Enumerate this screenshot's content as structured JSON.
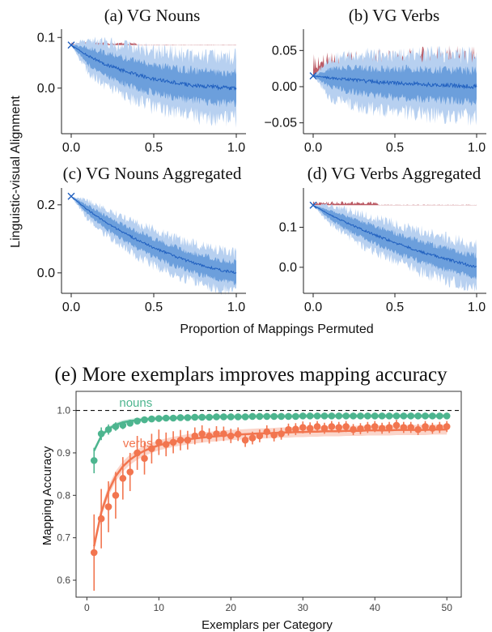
{
  "top_panels": {
    "shared_ylabel": "Linguistic-visual Alignment",
    "shared_xlabel": "Proportion of Mappings Permuted"
  },
  "chart_data": [
    {
      "type": "line",
      "title": "(a) VG Nouns",
      "xlabel": "",
      "ylabel": "",
      "xlim": [
        0,
        1
      ],
      "ylim": [
        -0.09,
        0.11
      ],
      "xticks": [
        0.0,
        0.5,
        1.0
      ],
      "xtick_labels": [
        "0.0",
        "0.5",
        "1.0"
      ],
      "yticks": [
        0.0,
        0.1
      ],
      "ytick_labels": [
        "0.0",
        "0.1"
      ],
      "start_value": 0.085,
      "series": [
        {
          "x": [
            0,
            0.1,
            0.2,
            0.3,
            0.4,
            0.5,
            0.6,
            0.7,
            0.8,
            0.9,
            1.0
          ],
          "values": [
            0.085,
            0.064,
            0.048,
            0.036,
            0.026,
            0.018,
            0.012,
            0.007,
            0.004,
            0.001,
            0.0
          ],
          "band_inner": [
            0.0,
            0.018,
            0.024,
            0.027,
            0.029,
            0.03,
            0.031,
            0.032,
            0.032,
            0.033,
            0.033
          ],
          "band_outer": [
            0.0,
            0.035,
            0.045,
            0.052,
            0.057,
            0.06,
            0.062,
            0.064,
            0.065,
            0.066,
            0.066
          ]
        }
      ],
      "above_baseline_max": 0.006,
      "colors": {
        "line": "#1f5fbf",
        "band_inner": "#6c9fdc",
        "band_outer": "#b7d0f0",
        "above": "#b54a55"
      }
    },
    {
      "type": "line",
      "title": "(b) VG Verbs",
      "xlabel": "",
      "ylabel": "",
      "xlim": [
        0,
        1
      ],
      "ylim": [
        -0.065,
        0.075
      ],
      "xticks": [
        0.0,
        0.5,
        1.0
      ],
      "xtick_labels": [
        "0.0",
        "0.5",
        "1.0"
      ],
      "yticks": [
        -0.05,
        0.0,
        0.05
      ],
      "ytick_labels": [
        "−0.05",
        "0.00",
        "0.05"
      ],
      "start_value": 0.015,
      "series": [
        {
          "x": [
            0,
            0.1,
            0.2,
            0.3,
            0.4,
            0.5,
            0.6,
            0.7,
            0.8,
            0.9,
            1.0
          ],
          "values": [
            0.015,
            0.012,
            0.01,
            0.008,
            0.006,
            0.005,
            0.004,
            0.003,
            0.002,
            0.001,
            0.0
          ],
          "band_inner": [
            0.0,
            0.013,
            0.017,
            0.019,
            0.02,
            0.021,
            0.022,
            0.022,
            0.023,
            0.023,
            0.023
          ],
          "band_outer": [
            0.0,
            0.028,
            0.035,
            0.039,
            0.041,
            0.043,
            0.044,
            0.045,
            0.046,
            0.046,
            0.047
          ]
        }
      ],
      "above_baseline_max": 0.045,
      "colors": {
        "line": "#1f5fbf",
        "band_inner": "#6c9fdc",
        "band_outer": "#b7d0f0",
        "above": "#b54a55"
      }
    },
    {
      "type": "line",
      "title": "(c) VG Nouns Aggregated",
      "xlabel": "",
      "ylabel": "",
      "xlim": [
        0,
        1
      ],
      "ylim": [
        -0.06,
        0.24
      ],
      "xticks": [
        0.0,
        0.5,
        1.0
      ],
      "xtick_labels": [
        "0.0",
        "0.5",
        "1.0"
      ],
      "yticks": [
        0.0,
        0.2
      ],
      "ytick_labels": [
        "0.0",
        "0.2"
      ],
      "start_value": 0.225,
      "series": [
        {
          "x": [
            0,
            0.1,
            0.2,
            0.3,
            0.4,
            0.5,
            0.6,
            0.7,
            0.8,
            0.9,
            1.0
          ],
          "values": [
            0.225,
            0.185,
            0.152,
            0.123,
            0.097,
            0.074,
            0.054,
            0.036,
            0.021,
            0.009,
            0.0
          ],
          "band_inner": [
            0.0,
            0.015,
            0.02,
            0.024,
            0.027,
            0.029,
            0.03,
            0.031,
            0.032,
            0.033,
            0.033
          ],
          "band_outer": [
            0.0,
            0.03,
            0.04,
            0.047,
            0.052,
            0.056,
            0.058,
            0.06,
            0.061,
            0.062,
            0.062
          ]
        }
      ],
      "above_baseline_max": 0.0,
      "colors": {
        "line": "#1f5fbf",
        "band_inner": "#6c9fdc",
        "band_outer": "#b7d0f0",
        "above": "#b54a55"
      }
    },
    {
      "type": "line",
      "title": "(d) VG Verbs Aggregated",
      "xlabel": "",
      "ylabel": "",
      "xlim": [
        0,
        1
      ],
      "ylim": [
        -0.065,
        0.19
      ],
      "xticks": [
        0.0,
        0.5,
        1.0
      ],
      "xtick_labels": [
        "0.0",
        "0.5",
        "1.0"
      ],
      "yticks": [
        0.0,
        0.1
      ],
      "ytick_labels": [
        "0.0",
        "0.1"
      ],
      "start_value": 0.155,
      "series": [
        {
          "x": [
            0,
            0.1,
            0.2,
            0.3,
            0.4,
            0.5,
            0.6,
            0.7,
            0.8,
            0.9,
            1.0
          ],
          "values": [
            0.155,
            0.132,
            0.112,
            0.094,
            0.077,
            0.062,
            0.047,
            0.034,
            0.022,
            0.011,
            0.0
          ],
          "band_inner": [
            0.0,
            0.012,
            0.017,
            0.021,
            0.024,
            0.026,
            0.027,
            0.028,
            0.029,
            0.029,
            0.03
          ],
          "band_outer": [
            0.0,
            0.025,
            0.035,
            0.042,
            0.047,
            0.051,
            0.054,
            0.056,
            0.057,
            0.058,
            0.058
          ]
        }
      ],
      "above_baseline_max": 0.01,
      "colors": {
        "line": "#1f5fbf",
        "band_inner": "#6c9fdc",
        "band_outer": "#b7d0f0",
        "above": "#b54a55"
      }
    },
    {
      "type": "scatter",
      "title": "(e) More exemplars improves mapping accuracy",
      "xlabel": "Exemplars per Category",
      "ylabel": "Mapping Accuracy",
      "xlim": [
        -1.5,
        52
      ],
      "ylim": [
        0.56,
        1.045
      ],
      "xticks": [
        0,
        10,
        20,
        30,
        40,
        50
      ],
      "xtick_labels": [
        "0",
        "10",
        "20",
        "30",
        "40",
        "50"
      ],
      "yticks": [
        0.6,
        0.7,
        0.8,
        0.9,
        1.0
      ],
      "ytick_labels": [
        "0.6",
        "0.7",
        "0.8",
        "0.9",
        "1.0"
      ],
      "reference_line": 1.0,
      "x": [
        1,
        2,
        3,
        4,
        5,
        6,
        7,
        8,
        9,
        10,
        11,
        12,
        13,
        14,
        15,
        16,
        17,
        18,
        19,
        20,
        21,
        22,
        23,
        24,
        25,
        26,
        27,
        28,
        29,
        30,
        31,
        32,
        33,
        34,
        35,
        36,
        37,
        38,
        39,
        40,
        41,
        42,
        43,
        44,
        45,
        46,
        47,
        48,
        49,
        50
      ],
      "series": [
        {
          "name": "nouns",
          "color": "#4db58f",
          "values": [
            0.882,
            0.945,
            0.955,
            0.962,
            0.965,
            0.97,
            0.975,
            0.978,
            0.98,
            0.981,
            0.982,
            0.982,
            0.983,
            0.983,
            0.984,
            0.984,
            0.984,
            0.985,
            0.985,
            0.985,
            0.985,
            0.985,
            0.986,
            0.986,
            0.986,
            0.986,
            0.986,
            0.986,
            0.986,
            0.987,
            0.987,
            0.987,
            0.987,
            0.987,
            0.987,
            0.987,
            0.987,
            0.987,
            0.987,
            0.987,
            0.987,
            0.987,
            0.987,
            0.987,
            0.987,
            0.987,
            0.987,
            0.987,
            0.987,
            0.987
          ],
          "errors": [
            0.03,
            0.015,
            0.012,
            0.01,
            0.009,
            0.008,
            0.007,
            0.006,
            0.005,
            0.005,
            0.005,
            0.004,
            0.004,
            0.004,
            0.004,
            0.004,
            0.004,
            0.004,
            0.004,
            0.004,
            0.004,
            0.004,
            0.004,
            0.004,
            0.004,
            0.004,
            0.004,
            0.004,
            0.004,
            0.004,
            0.004,
            0.004,
            0.004,
            0.004,
            0.004,
            0.004,
            0.004,
            0.004,
            0.004,
            0.004,
            0.004,
            0.004,
            0.004,
            0.004,
            0.004,
            0.004,
            0.004,
            0.004,
            0.004,
            0.004
          ],
          "fit": [
            0.905,
            0.94,
            0.957,
            0.966,
            0.972,
            0.975,
            0.977,
            0.979,
            0.98,
            0.981,
            0.982,
            0.982,
            0.983,
            0.983,
            0.984,
            0.984,
            0.984,
            0.985,
            0.985,
            0.985,
            0.985,
            0.985,
            0.986,
            0.986,
            0.986,
            0.986,
            0.986,
            0.986,
            0.986,
            0.987,
            0.987,
            0.987,
            0.987,
            0.987,
            0.987,
            0.987,
            0.987,
            0.987,
            0.987,
            0.987,
            0.987,
            0.987,
            0.987,
            0.987,
            0.987,
            0.987,
            0.987,
            0.987,
            0.987,
            0.987
          ]
        },
        {
          "name": "verbs",
          "color": "#f2754f",
          "values": [
            0.665,
            0.745,
            0.773,
            0.8,
            0.84,
            0.855,
            0.9,
            0.887,
            0.91,
            0.925,
            0.92,
            0.925,
            0.93,
            0.93,
            0.94,
            0.945,
            0.94,
            0.945,
            0.945,
            0.94,
            0.944,
            0.93,
            0.935,
            0.94,
            0.95,
            0.942,
            0.945,
            0.955,
            0.956,
            0.96,
            0.958,
            0.962,
            0.958,
            0.962,
            0.96,
            0.962,
            0.955,
            0.957,
            0.96,
            0.962,
            0.958,
            0.96,
            0.965,
            0.96,
            0.96,
            0.955,
            0.962,
            0.958,
            0.96,
            0.962
          ],
          "errors": [
            0.09,
            0.07,
            0.06,
            0.055,
            0.05,
            0.045,
            0.04,
            0.038,
            0.035,
            0.03,
            0.028,
            0.026,
            0.024,
            0.022,
            0.02,
            0.02,
            0.018,
            0.018,
            0.017,
            0.017,
            0.016,
            0.016,
            0.015,
            0.015,
            0.015,
            0.015,
            0.014,
            0.014,
            0.014,
            0.014,
            0.014,
            0.013,
            0.013,
            0.013,
            0.013,
            0.013,
            0.013,
            0.013,
            0.013,
            0.013,
            0.013,
            0.013,
            0.013,
            0.013,
            0.013,
            0.013,
            0.013,
            0.013,
            0.013,
            0.013
          ],
          "fit": [
            0.68,
            0.76,
            0.81,
            0.845,
            0.868,
            0.884,
            0.896,
            0.905,
            0.912,
            0.918,
            0.922,
            0.926,
            0.929,
            0.932,
            0.934,
            0.936,
            0.938,
            0.939,
            0.941,
            0.942,
            0.943,
            0.944,
            0.945,
            0.946,
            0.946,
            0.947,
            0.948,
            0.948,
            0.949,
            0.949,
            0.95,
            0.95,
            0.951,
            0.951,
            0.951,
            0.952,
            0.952,
            0.952,
            0.953,
            0.953,
            0.953,
            0.953,
            0.954,
            0.954,
            0.954,
            0.954,
            0.954,
            0.955,
            0.955,
            0.955
          ]
        }
      ]
    }
  ]
}
